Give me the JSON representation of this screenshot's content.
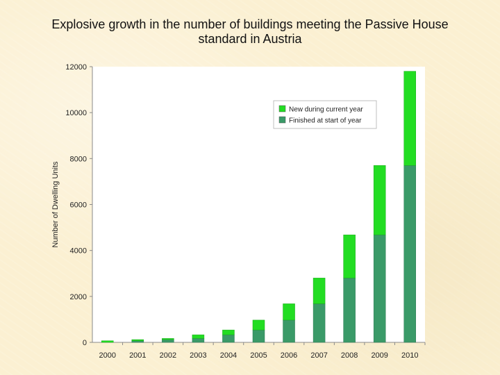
{
  "page": {
    "title_line1": "Explosive growth in the number of buildings meeting the Passive House",
    "title_line2": "standard in Austria"
  },
  "chart_data": {
    "type": "bar",
    "stacked": true,
    "title": "Explosive growth in the number of buildings meeting the Passive House standard in Austria",
    "xlabel": "",
    "ylabel": "Number of Dwelling Units",
    "ylim": [
      0,
      12000
    ],
    "yticks": [
      0,
      2000,
      4000,
      6000,
      8000,
      10000,
      12000
    ],
    "grid": false,
    "legend_position": "top-right",
    "categories": [
      "2000",
      "2001",
      "2002",
      "2003",
      "2004",
      "2005",
      "2006",
      "2007",
      "2008",
      "2009",
      "2010"
    ],
    "series": [
      {
        "name": "Finished at start of year",
        "color": "#3a9a68",
        "values": [
          0,
          70,
          120,
          170,
          330,
          540,
          970,
          1680,
          2800,
          4680,
          7700
        ]
      },
      {
        "name": "New during current year",
        "color": "#22dd22",
        "values": [
          70,
          50,
          50,
          160,
          210,
          430,
          710,
          1120,
          1880,
          3020,
          4100
        ]
      }
    ]
  }
}
